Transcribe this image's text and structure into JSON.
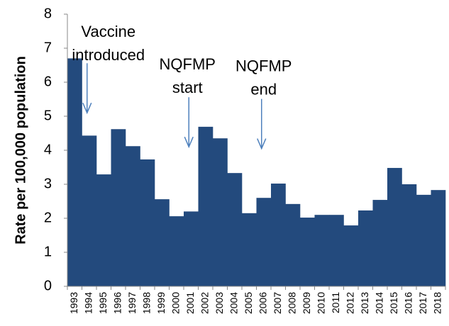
{
  "chart_data": {
    "type": "bar",
    "y_label": "Rate per 100,000 population",
    "categories": [
      "1993",
      "1994",
      "1995",
      "1996",
      "1997",
      "1998",
      "1999",
      "2000",
      "2001",
      "2002",
      "2003",
      "2004",
      "2005",
      "2006",
      "2007",
      "2008",
      "2009",
      "2010",
      "2011",
      "2012",
      "2013",
      "2014",
      "2015",
      "2016",
      "2017",
      "2018"
    ],
    "values": [
      6.7,
      4.43,
      3.29,
      4.62,
      4.12,
      3.73,
      2.56,
      2.06,
      2.2,
      4.69,
      4.35,
      3.33,
      2.15,
      2.6,
      3.02,
      2.42,
      2.02,
      2.1,
      2.1,
      1.79,
      2.23,
      2.54,
      3.48,
      3.0,
      2.69,
      2.83
    ],
    "color": "#234a7d",
    "ylim": [
      0,
      8
    ],
    "yticks": [
      0,
      1,
      2,
      3,
      4,
      5,
      6,
      7,
      8
    ],
    "annotations": [
      {
        "lines": [
          "Vaccine",
          "introduced"
        ],
        "x": "1994",
        "y": 5.1
      },
      {
        "lines": [
          "NQFMP",
          "start"
        ],
        "x": "2001",
        "y": 4.1
      },
      {
        "lines": [
          "NQFMP",
          "end"
        ],
        "x": "2006",
        "y": 4.05
      }
    ]
  }
}
